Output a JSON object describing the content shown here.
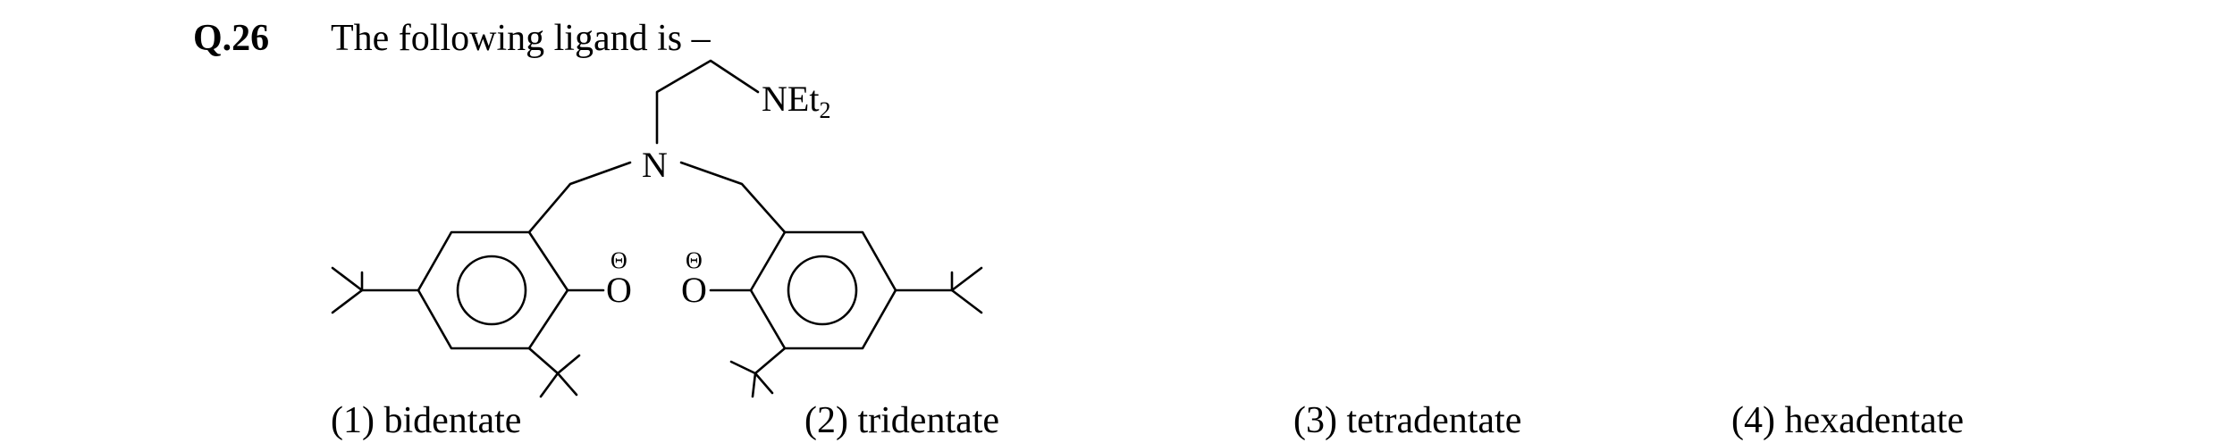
{
  "question": {
    "number": "Q.26",
    "text": "The following ligand is –"
  },
  "structure": {
    "amine_group": "NEt",
    "amine_subscript": "2",
    "central_atom": "N",
    "oxygen_left": "O",
    "oxygen_right": "O",
    "charge_symbol": "Θ"
  },
  "options": [
    {
      "label": "(1) bidentate"
    },
    {
      "label": "(2) tridentate"
    },
    {
      "label": "(3) tetradentate"
    },
    {
      "label": "(4) hexadentate"
    }
  ]
}
